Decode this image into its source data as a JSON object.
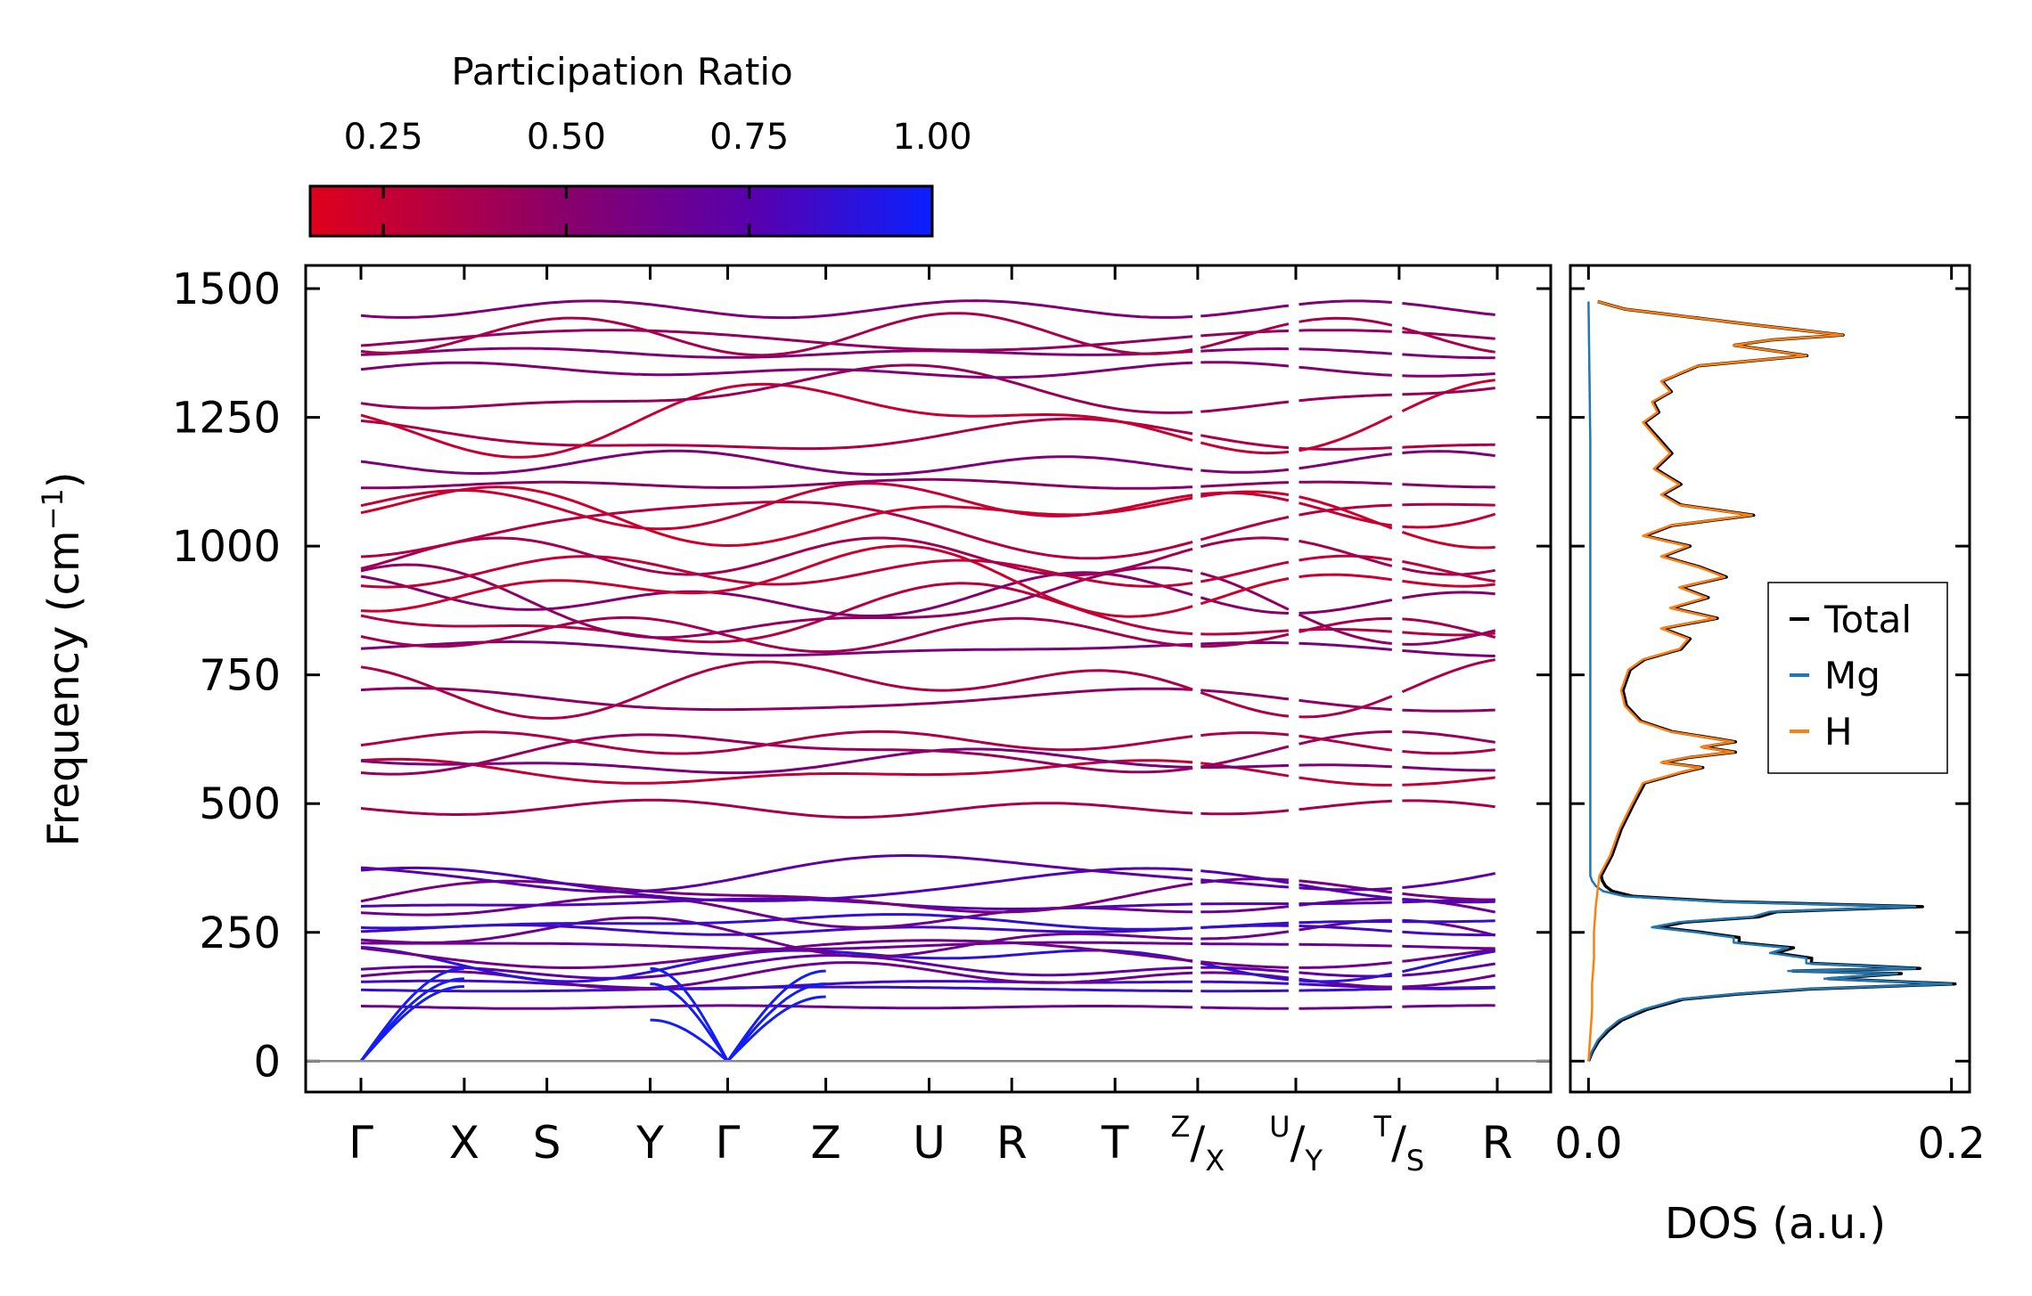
{
  "chart_data": [
    {
      "type": "line",
      "name": "phonon-band-structure",
      "ylabel_main": "Frequency (cm",
      "ylabel_sup": "−1",
      "ylabel_close": ")",
      "ylim": [
        -60,
        1545
      ],
      "yticks": [
        0,
        250,
        500,
        750,
        1000,
        1250,
        1500
      ],
      "ytick_labels": [
        "0",
        "250",
        "500",
        "750",
        "1000",
        "1250",
        "1500"
      ],
      "zero_line": 0,
      "path_labels": [
        {
          "main": "Γ",
          "sup": "",
          "sub": ""
        },
        {
          "main": "X",
          "sup": "",
          "sub": ""
        },
        {
          "main": "S",
          "sup": "",
          "sub": ""
        },
        {
          "main": "Y",
          "sup": "",
          "sub": ""
        },
        {
          "main": "Γ",
          "sup": "",
          "sub": ""
        },
        {
          "main": "Z",
          "sup": "",
          "sub": ""
        },
        {
          "main": "U",
          "sup": "",
          "sub": ""
        },
        {
          "main": "R",
          "sup": "",
          "sub": ""
        },
        {
          "main": "T",
          "sup": "",
          "sub": ""
        },
        {
          "main": "/",
          "sup": "Z",
          "sub": "X"
        },
        {
          "main": "/",
          "sup": "U",
          "sub": "Y"
        },
        {
          "main": "/",
          "sup": "T",
          "sub": "S"
        },
        {
          "main": "R",
          "sup": "",
          "sub": ""
        }
      ],
      "path_positions": [
        0,
        1.0,
        1.8,
        2.8,
        3.55,
        4.5,
        5.5,
        6.3,
        7.3,
        8.1,
        9.05,
        10.05,
        11.0
      ],
      "path_breaks": [
        8.1,
        9.05,
        10.05
      ],
      "colorbar": {
        "title": "Participation Ratio",
        "range": [
          0.15,
          1.0
        ],
        "ticks": [
          0.25,
          0.5,
          0.75,
          1.0
        ],
        "tick_labels": [
          "0.25",
          "0.50",
          "0.75",
          "1.00"
        ],
        "colors": [
          "#e0001b",
          "#8a0068",
          "#5600b0",
          "#0a20ff"
        ]
      },
      "acoustic_branches": {
        "gamma_positions": [
          0,
          3.55
        ],
        "to_X": [
          145,
          160,
          180
        ],
        "to_Y": [
          80,
          150,
          180
        ],
        "to_Z": [
          125,
          150,
          175
        ]
      },
      "optical_bands_cm1": [
        105,
        140,
        150,
        165,
        180,
        195,
        210,
        225,
        240,
        255,
        270,
        290,
        305,
        320,
        340,
        365,
        490,
        560,
        580,
        600,
        620,
        700,
        730,
        800,
        830,
        860,
        880,
        900,
        930,
        950,
        980,
        1040,
        1060,
        1080,
        1120,
        1160,
        1210,
        1250,
        1300,
        1340,
        1375,
        1400,
        1410,
        1460
      ]
    },
    {
      "type": "line",
      "name": "phonon-dos",
      "xlabel": "DOS (a.u.)",
      "xlim": [
        -0.01,
        0.21
      ],
      "xticks": [
        0.0,
        0.2
      ],
      "xtick_labels": [
        "0.0",
        "0.2"
      ],
      "ylim": [
        -60,
        1545
      ],
      "legend_position": "center-right",
      "series": [
        {
          "name": "Total",
          "color": "#000000"
        },
        {
          "name": "Mg",
          "color": "#1f77b4"
        },
        {
          "name": "H",
          "color": "#ff7f0e"
        }
      ],
      "Mg_dos": {
        "freq": [
          0,
          20,
          40,
          60,
          80,
          100,
          120,
          130,
          140,
          150,
          160,
          170,
          175,
          180,
          190,
          200,
          210,
          220,
          230,
          240,
          250,
          260,
          270,
          280,
          290,
          300,
          310,
          320,
          330,
          340,
          350,
          360,
          400,
          600,
          900,
          1200,
          1480
        ],
        "dos": [
          0,
          0.002,
          0.005,
          0.01,
          0.017,
          0.03,
          0.05,
          0.08,
          0.12,
          0.2,
          0.13,
          0.17,
          0.11,
          0.18,
          0.12,
          0.12,
          0.1,
          0.11,
          0.08,
          0.08,
          0.06,
          0.035,
          0.05,
          0.09,
          0.1,
          0.18,
          0.07,
          0.02,
          0.008,
          0.004,
          0.002,
          0.001,
          0.001,
          0.001,
          0.001,
          0.001,
          0
        ]
      },
      "H_dos": {
        "freq": [
          0,
          100,
          150,
          200,
          250,
          300,
          330,
          360,
          400,
          450,
          500,
          540,
          560,
          570,
          580,
          590,
          600,
          610,
          620,
          640,
          660,
          690,
          720,
          760,
          780,
          800,
          820,
          840,
          860,
          880,
          900,
          920,
          940,
          960,
          980,
          1000,
          1020,
          1040,
          1060,
          1080,
          1100,
          1120,
          1150,
          1180,
          1200,
          1240,
          1260,
          1280,
          1300,
          1320,
          1350,
          1370,
          1390,
          1400,
          1410,
          1430,
          1460,
          1475
        ],
        "dos": [
          0,
          0.002,
          0.002,
          0.003,
          0.003,
          0.004,
          0.005,
          0.006,
          0.012,
          0.017,
          0.024,
          0.03,
          0.05,
          0.062,
          0.04,
          0.055,
          0.08,
          0.062,
          0.08,
          0.045,
          0.028,
          0.02,
          0.018,
          0.022,
          0.03,
          0.05,
          0.055,
          0.04,
          0.07,
          0.045,
          0.065,
          0.05,
          0.075,
          0.06,
          0.04,
          0.055,
          0.03,
          0.045,
          0.09,
          0.05,
          0.04,
          0.05,
          0.036,
          0.045,
          0.04,
          0.03,
          0.038,
          0.035,
          0.045,
          0.04,
          0.06,
          0.12,
          0.08,
          0.1,
          0.14,
          0.09,
          0.02,
          0.005
        ]
      }
    }
  ]
}
